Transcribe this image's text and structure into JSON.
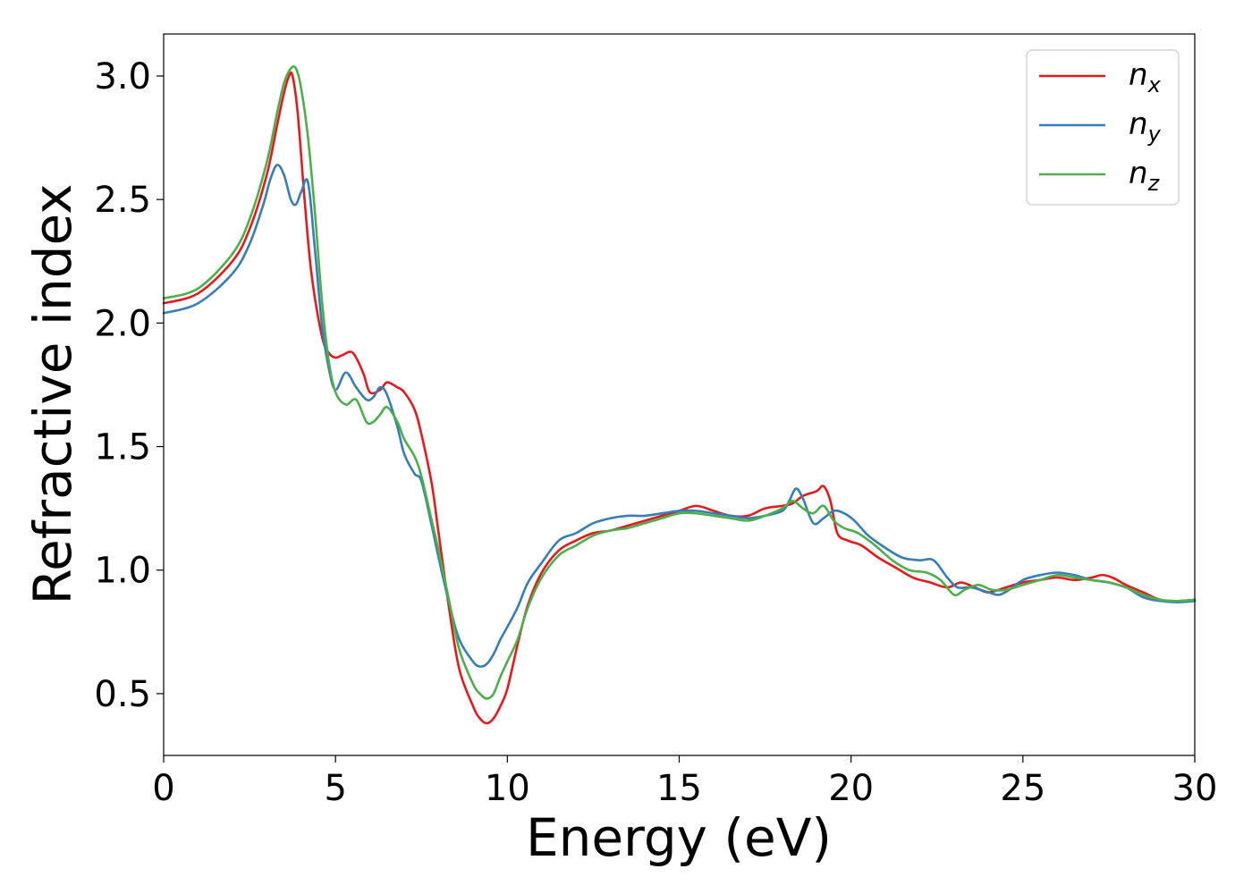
{
  "chart_data": {
    "type": "line",
    "title": "",
    "xlabel": "Energy (eV)",
    "ylabel": "Refractive index",
    "xlim": [
      0,
      30
    ],
    "ylim": [
      0.25,
      3.17
    ],
    "xticks": [
      0,
      5,
      10,
      15,
      20,
      25,
      30
    ],
    "xtick_labels": [
      "0",
      "5",
      "10",
      "15",
      "20",
      "25",
      "30"
    ],
    "yticks": [
      0.5,
      1.0,
      1.5,
      2.0,
      2.5,
      3.0
    ],
    "ytick_labels": [
      "0.5",
      "1.0",
      "1.5",
      "2.0",
      "2.5",
      "3.0"
    ],
    "grid": false,
    "legend_position": "top-right",
    "series": [
      {
        "name": "n",
        "subscript": "x",
        "color": "#e41a1c",
        "x": [
          0,
          1,
          2,
          2.5,
          3,
          3.3,
          3.5,
          3.65,
          3.75,
          3.9,
          4.1,
          4.3,
          4.6,
          4.8,
          5.0,
          5.2,
          5.5,
          5.8,
          6.0,
          6.3,
          6.5,
          6.8,
          7.0,
          7.3,
          7.5,
          7.8,
          8.0,
          8.3,
          8.6,
          9.0,
          9.2,
          9.4,
          9.6,
          9.8,
          10.0,
          10.3,
          10.6,
          11.0,
          11.5,
          12.0,
          12.5,
          13.0,
          13.5,
          14.0,
          14.5,
          15.0,
          15.5,
          16.0,
          16.5,
          17.0,
          17.5,
          18.0,
          18.3,
          18.6,
          19.0,
          19.2,
          19.4,
          19.6,
          19.9,
          20.3,
          20.8,
          21.3,
          21.8,
          22.3,
          22.8,
          23.2,
          23.6,
          24.0,
          24.5,
          25.0,
          25.5,
          26.0,
          26.5,
          27.0,
          27.3,
          27.6,
          28.0,
          28.5,
          29.0,
          29.5,
          30.0
        ],
        "y": [
          2.08,
          2.12,
          2.25,
          2.38,
          2.6,
          2.8,
          2.93,
          3.0,
          3.0,
          2.85,
          2.5,
          2.2,
          1.95,
          1.88,
          1.86,
          1.87,
          1.88,
          1.8,
          1.72,
          1.73,
          1.76,
          1.74,
          1.72,
          1.65,
          1.55,
          1.35,
          1.15,
          0.85,
          0.6,
          0.45,
          0.4,
          0.38,
          0.4,
          0.45,
          0.52,
          0.7,
          0.86,
          0.99,
          1.08,
          1.12,
          1.15,
          1.16,
          1.18,
          1.2,
          1.22,
          1.24,
          1.26,
          1.24,
          1.22,
          1.22,
          1.25,
          1.26,
          1.27,
          1.3,
          1.32,
          1.34,
          1.28,
          1.15,
          1.12,
          1.1,
          1.05,
          1.01,
          0.97,
          0.95,
          0.93,
          0.95,
          0.93,
          0.91,
          0.93,
          0.95,
          0.96,
          0.97,
          0.96,
          0.97,
          0.98,
          0.97,
          0.94,
          0.91,
          0.88,
          0.875,
          0.88
        ]
      },
      {
        "name": "n",
        "subscript": "y",
        "color": "#377eb8",
        "x": [
          0,
          1,
          2,
          2.5,
          2.9,
          3.1,
          3.3,
          3.5,
          3.7,
          3.85,
          4.0,
          4.2,
          4.4,
          4.6,
          4.8,
          5.0,
          5.3,
          5.6,
          5.9,
          6.1,
          6.3,
          6.5,
          6.8,
          7.0,
          7.3,
          7.5,
          7.8,
          8.0,
          8.3,
          8.6,
          9.0,
          9.2,
          9.4,
          9.6,
          9.8,
          10.0,
          10.3,
          10.6,
          11.0,
          11.5,
          12.0,
          12.5,
          13.0,
          13.5,
          14.0,
          14.5,
          15.0,
          15.5,
          16.0,
          16.5,
          17.0,
          17.5,
          18.0,
          18.2,
          18.4,
          18.6,
          18.9,
          19.2,
          19.5,
          19.8,
          20.1,
          20.5,
          21.0,
          21.5,
          22.0,
          22.4,
          22.8,
          23.1,
          23.5,
          24.0,
          24.3,
          24.6,
          25.0,
          25.5,
          26.0,
          26.5,
          27.0,
          27.5,
          28.0,
          28.5,
          29.0,
          29.5,
          30.0
        ],
        "y": [
          2.04,
          2.08,
          2.2,
          2.32,
          2.48,
          2.58,
          2.64,
          2.6,
          2.5,
          2.48,
          2.53,
          2.57,
          2.3,
          2.0,
          1.82,
          1.73,
          1.8,
          1.74,
          1.69,
          1.7,
          1.74,
          1.71,
          1.58,
          1.47,
          1.39,
          1.36,
          1.18,
          1.05,
          0.87,
          0.72,
          0.63,
          0.61,
          0.62,
          0.66,
          0.72,
          0.77,
          0.85,
          0.95,
          1.03,
          1.12,
          1.15,
          1.19,
          1.21,
          1.22,
          1.22,
          1.23,
          1.24,
          1.24,
          1.23,
          1.22,
          1.21,
          1.22,
          1.24,
          1.28,
          1.33,
          1.29,
          1.19,
          1.21,
          1.24,
          1.23,
          1.2,
          1.14,
          1.09,
          1.05,
          1.04,
          1.04,
          0.97,
          0.93,
          0.93,
          0.91,
          0.9,
          0.92,
          0.96,
          0.98,
          0.99,
          0.98,
          0.96,
          0.95,
          0.93,
          0.89,
          0.875,
          0.87,
          0.875
        ]
      },
      {
        "name": "n",
        "subscript": "z",
        "color": "#4daf4a",
        "x": [
          0,
          1,
          2,
          2.5,
          3,
          3.3,
          3.5,
          3.7,
          3.85,
          4.0,
          4.2,
          4.4,
          4.6,
          4.8,
          5.0,
          5.3,
          5.6,
          5.9,
          6.1,
          6.3,
          6.5,
          6.8,
          7.0,
          7.3,
          7.5,
          7.8,
          8.0,
          8.3,
          8.6,
          9.0,
          9.2,
          9.4,
          9.6,
          9.8,
          10.0,
          10.3,
          10.6,
          11.0,
          11.5,
          12.0,
          12.5,
          13.0,
          13.5,
          14.0,
          14.5,
          15.0,
          15.5,
          16.0,
          16.5,
          17.0,
          17.5,
          18.0,
          18.3,
          18.6,
          18.9,
          19.2,
          19.5,
          19.8,
          20.2,
          20.7,
          21.2,
          21.7,
          22.2,
          22.6,
          23.0,
          23.3,
          23.7,
          24.1,
          24.5,
          25.0,
          25.5,
          26.0,
          26.5,
          27.0,
          27.5,
          28.0,
          28.5,
          29.0,
          29.5,
          30.0
        ],
        "y": [
          2.1,
          2.14,
          2.28,
          2.42,
          2.65,
          2.85,
          2.97,
          3.03,
          3.03,
          2.95,
          2.75,
          2.45,
          2.1,
          1.85,
          1.72,
          1.67,
          1.69,
          1.6,
          1.6,
          1.63,
          1.66,
          1.6,
          1.53,
          1.46,
          1.38,
          1.2,
          1.08,
          0.88,
          0.68,
          0.54,
          0.5,
          0.48,
          0.5,
          0.57,
          0.63,
          0.72,
          0.85,
          0.97,
          1.06,
          1.1,
          1.14,
          1.16,
          1.17,
          1.19,
          1.21,
          1.23,
          1.23,
          1.22,
          1.21,
          1.2,
          1.22,
          1.25,
          1.28,
          1.25,
          1.23,
          1.26,
          1.2,
          1.17,
          1.15,
          1.1,
          1.04,
          1.0,
          0.99,
          0.96,
          0.9,
          0.92,
          0.94,
          0.92,
          0.92,
          0.94,
          0.96,
          0.98,
          0.97,
          0.96,
          0.95,
          0.93,
          0.9,
          0.88,
          0.875,
          0.88
        ]
      }
    ]
  }
}
